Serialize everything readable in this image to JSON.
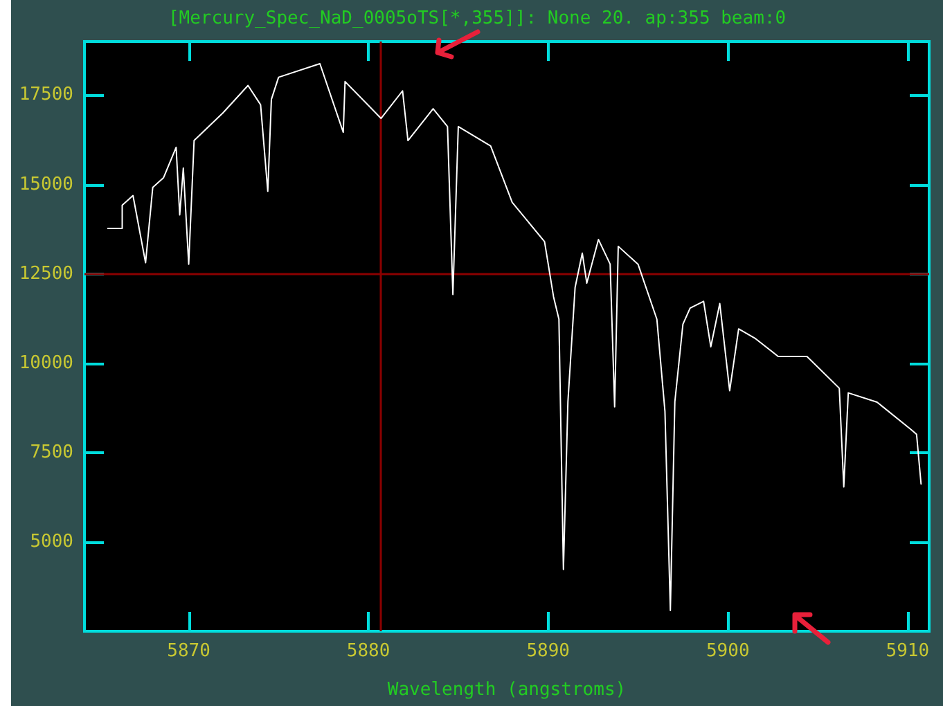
{
  "chart_data": {
    "type": "line",
    "title": "[Mercury_Spec_NaD_0005oTS[*,355]]: None 20. ap:355 beam:0",
    "xlabel": "Wavelength (angstroms)",
    "x": [
      5865.5,
      5866.3,
      5866.3,
      5866.9,
      5867.6,
      5868.0,
      5868.6,
      5869.3,
      5869.5,
      5869.7,
      5870.0,
      5870.3,
      5871.9,
      5873.3,
      5874.0,
      5874.4,
      5874.6,
      5875.0,
      5877.3,
      5878.6,
      5878.7,
      5880.7,
      5881.9,
      5882.2,
      5883.6,
      5884.4,
      5884.7,
      5885.0,
      5886.8,
      5888.0,
      5889.8,
      5890.3,
      5890.6,
      5890.85,
      5891.1,
      5891.5,
      5891.9,
      5892.15,
      5892.8,
      5893.45,
      5893.7,
      5893.9,
      5895.0,
      5896.05,
      5896.5,
      5896.8,
      5897.05,
      5897.5,
      5897.9,
      5898.65,
      5899.05,
      5899.55,
      5900.1,
      5900.6,
      5901.5,
      5902.8,
      5904.4,
      5906.2,
      5906.45,
      5906.7,
      5908.3,
      5910.2,
      5910.5,
      5910.75
    ],
    "series": [
      {
        "color": "#ffffff",
        "values": [
          13770,
          13770,
          14420,
          14690,
          12810,
          14920,
          15190,
          16040,
          14150,
          15460,
          12770,
          16230,
          17000,
          17770,
          17230,
          14810,
          17380,
          18000,
          18380,
          16460,
          17880,
          16850,
          17620,
          16230,
          17120,
          16620,
          11920,
          16620,
          16080,
          14500,
          13400,
          11860,
          11230,
          4230,
          8920,
          12120,
          13080,
          12240,
          13460,
          12770,
          8780,
          13270,
          12770,
          11230,
          8650,
          3080,
          8920,
          11090,
          11540,
          11730,
          10460,
          11670,
          9230,
          10960,
          10700,
          10190,
          10190,
          9300,
          6540,
          9170,
          8910,
          8140,
          8010,
          6620
        ]
      }
    ],
    "xlim": [
      5864.2,
      5911.2
    ],
    "xticks": [
      5870,
      5880,
      5890,
      5900,
      5910
    ],
    "ylim": [
      2500,
      19000
    ],
    "yticks": [
      5000,
      7500,
      10000,
      12500,
      15000,
      17500
    ],
    "ref_lines": [
      {
        "axis": "x",
        "value": 5880.7,
        "color": "#8b0000"
      },
      {
        "axis": "y",
        "value": 12500,
        "color": "#8b0000"
      }
    ],
    "grid": false,
    "marker": "none",
    "line_style": "solid"
  }
}
